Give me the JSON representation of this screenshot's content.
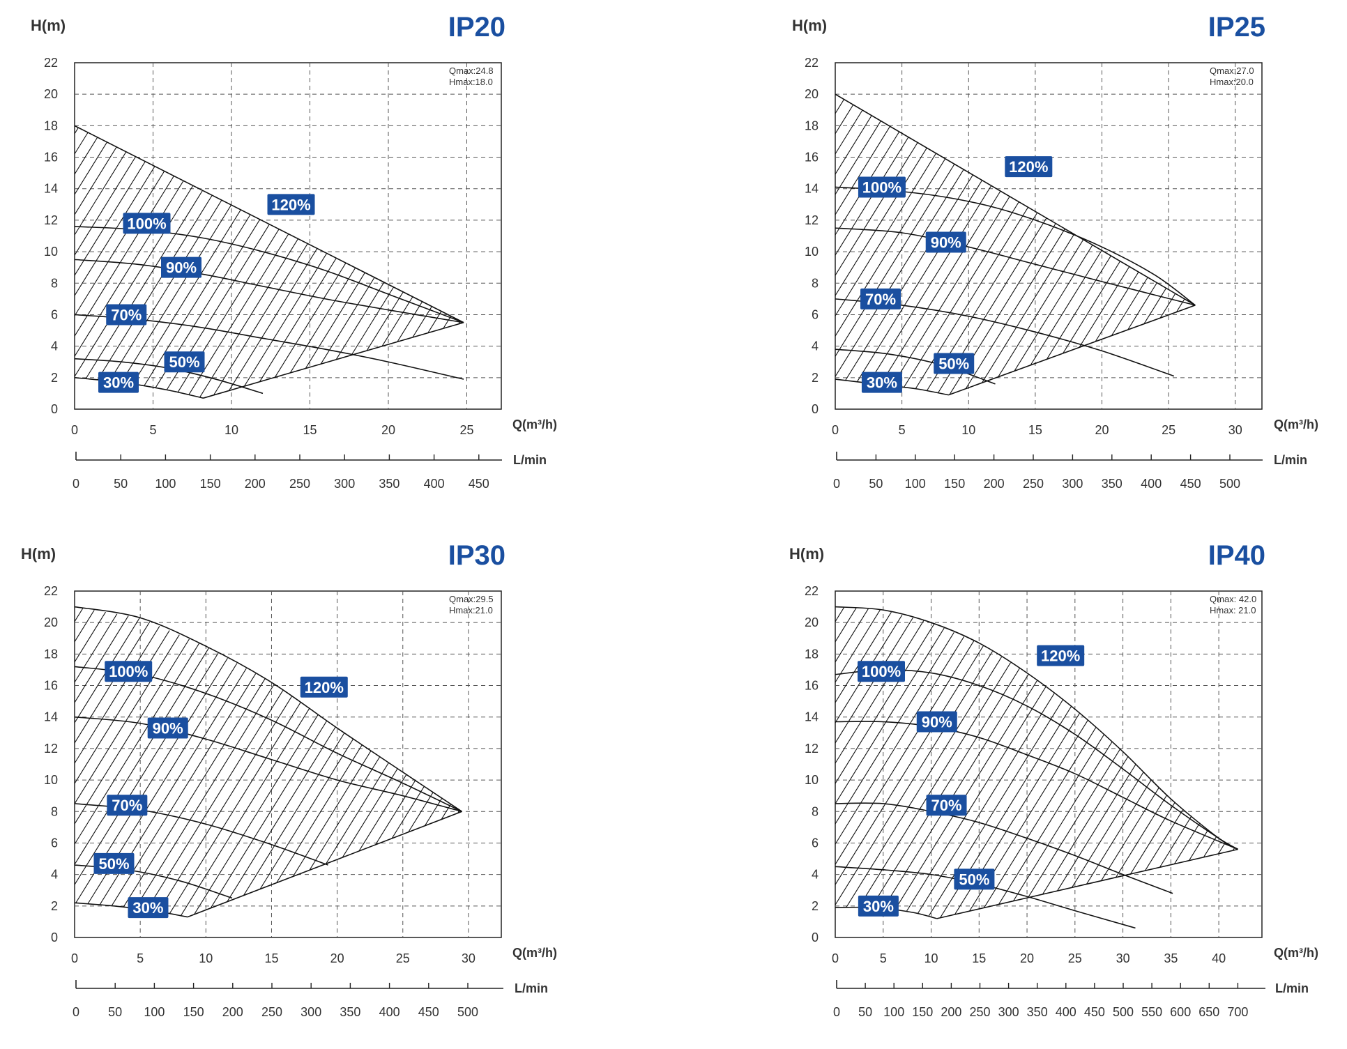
{
  "chart_data": [
    {
      "type": "line",
      "title": "IP20",
      "ylabel": "H(m)",
      "xlabel": "Q(m³/h)",
      "secondary_xlabel": "L/min",
      "ylim": [
        0,
        22
      ],
      "xlim": [
        0,
        27.2
      ],
      "xticks": [
        "0",
        "5",
        "10",
        "15",
        "20",
        "25"
      ],
      "yticks": [
        "0",
        "2",
        "4",
        "6",
        "8",
        "10",
        "12",
        "14",
        "16",
        "18",
        "20",
        "22"
      ],
      "lmin_ticks": [
        "0",
        "50",
        "100",
        "150",
        "200",
        "250",
        "300",
        "350",
        "400",
        "450"
      ],
      "annotation": [
        "Qmax:24.8",
        "Hmax:18.0"
      ],
      "series": [
        {
          "name": "120%",
          "x": [
            0,
            24.8
          ],
          "y": [
            18.0,
            5.5
          ],
          "label_at": [
            13.8,
            13.0
          ]
        },
        {
          "name": "100%",
          "x": [
            0,
            4,
            8,
            12,
            16,
            20,
            24.8
          ],
          "y": [
            11.6,
            11.4,
            10.9,
            10.0,
            8.8,
            7.3,
            5.5
          ],
          "label_at": [
            4.6,
            11.8
          ]
        },
        {
          "name": "90%",
          "x": [
            0,
            4,
            8,
            12,
            16,
            20,
            24.8
          ],
          "y": [
            9.5,
            9.2,
            8.6,
            7.8,
            7.0,
            6.3,
            5.5
          ],
          "label_at": [
            6.8,
            9.0
          ]
        },
        {
          "name": "70%",
          "x": [
            0,
            4,
            8,
            12,
            16,
            20,
            24.8
          ],
          "y": [
            6.0,
            5.7,
            5.2,
            4.5,
            3.8,
            3.0,
            1.9
          ],
          "label_at": [
            3.3,
            6.0
          ]
        },
        {
          "name": "50%",
          "x": [
            0,
            3,
            6,
            9,
            12
          ],
          "y": [
            3.2,
            3.0,
            2.6,
            1.9,
            1.0
          ],
          "label_at": [
            7.0,
            3.0
          ]
        },
        {
          "name": "30%",
          "x": [
            0,
            3,
            6,
            8.2
          ],
          "y": [
            2.0,
            1.7,
            1.2,
            0.7
          ],
          "label_at": [
            2.8,
            1.7
          ]
        },
        {
          "name": "",
          "x": [
            8.2,
            24.8
          ],
          "y": [
            0.7,
            5.5
          ]
        }
      ]
    },
    {
      "type": "line",
      "title": "IP25",
      "ylabel": "H(m)",
      "xlabel": "Q(m³/h)",
      "secondary_xlabel": "L/min",
      "ylim": [
        0,
        22
      ],
      "xlim": [
        0,
        32
      ],
      "xticks": [
        "0",
        "5",
        "10",
        "15",
        "20",
        "25",
        "30"
      ],
      "yticks": [
        "0",
        "2",
        "4",
        "6",
        "8",
        "10",
        "12",
        "14",
        "16",
        "18",
        "20",
        "22"
      ],
      "lmin_ticks": [
        "0",
        "50",
        "100",
        "150",
        "200",
        "250",
        "300",
        "350",
        "400",
        "450",
        "500"
      ],
      "annotation": [
        "Qmax:27.0",
        "Hmax:20.0"
      ],
      "series": [
        {
          "name": "120%",
          "x": [
            0,
            27.0
          ],
          "y": [
            20.0,
            6.6
          ],
          "label_at": [
            14.5,
            15.4
          ]
        },
        {
          "name": "100%",
          "x": [
            0,
            4,
            8,
            12,
            16,
            20,
            24,
            27.0
          ],
          "y": [
            14.1,
            13.9,
            13.5,
            12.8,
            11.7,
            10.3,
            8.5,
            6.6
          ],
          "label_at": [
            3.5,
            14.1
          ]
        },
        {
          "name": "90%",
          "x": [
            0,
            5,
            10,
            15,
            20,
            27.0
          ],
          "y": [
            11.5,
            11.2,
            10.3,
            9.2,
            8.1,
            6.6
          ],
          "label_at": [
            8.3,
            10.6
          ]
        },
        {
          "name": "70%",
          "x": [
            0,
            5,
            10,
            15,
            20,
            25.4
          ],
          "y": [
            7.0,
            6.6,
            5.9,
            4.9,
            3.7,
            2.1
          ],
          "label_at": [
            3.4,
            7.0
          ]
        },
        {
          "name": "50%",
          "x": [
            0,
            4,
            8,
            12
          ],
          "y": [
            3.8,
            3.5,
            2.8,
            1.6
          ],
          "label_at": [
            8.9,
            2.9
          ]
        },
        {
          "name": "30%",
          "x": [
            0,
            3,
            6,
            8.5
          ],
          "y": [
            1.9,
            1.6,
            1.3,
            0.9
          ],
          "label_at": [
            3.5,
            1.7
          ]
        },
        {
          "name": "",
          "x": [
            8.5,
            27.0
          ],
          "y": [
            0.9,
            6.6
          ]
        }
      ]
    },
    {
      "type": "line",
      "title": "IP30",
      "ylabel": "H(m)",
      "xlabel": "Q(m³/h)",
      "secondary_xlabel": "L/min",
      "ylim": [
        0,
        22
      ],
      "xlim": [
        0,
        32.5
      ],
      "xticks": [
        "0",
        "5",
        "10",
        "15",
        "20",
        "25",
        "30"
      ],
      "yticks": [
        "0",
        "2",
        "4",
        "6",
        "8",
        "10",
        "12",
        "14",
        "16",
        "18",
        "20",
        "22"
      ],
      "lmin_ticks": [
        "0",
        "50",
        "100",
        "150",
        "200",
        "250",
        "300",
        "350",
        "400",
        "450",
        "500"
      ],
      "annotation": [
        "Qmax:29.5",
        "Hmax:21.0"
      ],
      "series": [
        {
          "name": "120%",
          "x": [
            0,
            5,
            10,
            15,
            20,
            25,
            29.5
          ],
          "y": [
            21.0,
            20.3,
            18.5,
            16.2,
            13.3,
            10.5,
            8.0
          ],
          "label_at": [
            19.0,
            15.9
          ]
        },
        {
          "name": "100%",
          "x": [
            0,
            5,
            10,
            15,
            20,
            25,
            29.5
          ],
          "y": [
            17.2,
            16.7,
            15.5,
            13.8,
            11.7,
            9.8,
            8.0
          ],
          "label_at": [
            4.1,
            16.9
          ]
        },
        {
          "name": "90%",
          "x": [
            0,
            5,
            10,
            15,
            20,
            25,
            29.5
          ],
          "y": [
            14.0,
            13.6,
            12.6,
            11.3,
            10.0,
            9.0,
            8.0
          ],
          "label_at": [
            7.1,
            13.3
          ]
        },
        {
          "name": "70%",
          "x": [
            0,
            5,
            10,
            15,
            19.3
          ],
          "y": [
            8.5,
            8.1,
            7.2,
            5.9,
            4.6
          ],
          "label_at": [
            4.0,
            8.4
          ]
        },
        {
          "name": "50%",
          "x": [
            0,
            4,
            8,
            12
          ],
          "y": [
            4.6,
            4.3,
            3.6,
            2.5
          ],
          "label_at": [
            3.0,
            4.7
          ]
        },
        {
          "name": "30%",
          "x": [
            0,
            3,
            6,
            8.6
          ],
          "y": [
            2.2,
            2.0,
            1.7,
            1.3
          ],
          "label_at": [
            5.6,
            1.9
          ]
        },
        {
          "name": "",
          "x": [
            8.6,
            29.5
          ],
          "y": [
            1.3,
            8.0
          ]
        }
      ]
    },
    {
      "type": "line",
      "title": "IP40",
      "ylabel": "H(m)",
      "xlabel": "Q(m³/h)",
      "secondary_xlabel": "L/min",
      "ylim": [
        0,
        22
      ],
      "xlim": [
        0,
        44.5
      ],
      "xticks": [
        "0",
        "5",
        "10",
        "15",
        "20",
        "25",
        "30",
        "35",
        "40"
      ],
      "yticks": [
        "0",
        "2",
        "4",
        "6",
        "8",
        "10",
        "12",
        "14",
        "16",
        "18",
        "20",
        "22"
      ],
      "lmin_ticks": [
        "0",
        "50",
        "100",
        "150",
        "200",
        "250",
        "300",
        "350",
        "400",
        "450",
        "500",
        "550",
        "600",
        "650",
        "700"
      ],
      "annotation": [
        "Qmax: 42.0",
        "Hmax: 21.0"
      ],
      "series": [
        {
          "name": "120%",
          "x": [
            0,
            5,
            10,
            15,
            20,
            25,
            30,
            35,
            40,
            42.0
          ],
          "y": [
            21.0,
            20.8,
            20.0,
            18.7,
            16.8,
            14.5,
            11.8,
            8.8,
            6.3,
            5.6
          ],
          "label_at": [
            23.5,
            17.9
          ]
        },
        {
          "name": "100%",
          "x": [
            0,
            5,
            10,
            15,
            20,
            25,
            30,
            35,
            40,
            42.0
          ],
          "y": [
            16.7,
            17.0,
            16.8,
            16.0,
            14.7,
            12.9,
            10.7,
            8.4,
            6.3,
            5.6
          ],
          "label_at": [
            4.8,
            16.9
          ]
        },
        {
          "name": "90%",
          "x": [
            0,
            5,
            10,
            15,
            20,
            25,
            30,
            35,
            42.0
          ],
          "y": [
            13.7,
            13.7,
            13.4,
            12.7,
            11.6,
            10.4,
            8.9,
            7.4,
            5.6
          ],
          "label_at": [
            10.6,
            13.7
          ]
        },
        {
          "name": "70%",
          "x": [
            0,
            5,
            10,
            15,
            20,
            25,
            30,
            35.2
          ],
          "y": [
            8.5,
            8.5,
            8.0,
            7.3,
            6.3,
            5.2,
            4.0,
            2.8
          ],
          "label_at": [
            11.6,
            8.4
          ]
        },
        {
          "name": "50%",
          "x": [
            0,
            5,
            10,
            15,
            20,
            25,
            31.3
          ],
          "y": [
            4.5,
            4.3,
            4.0,
            3.4,
            2.6,
            1.7,
            0.6
          ],
          "label_at": [
            14.5,
            3.7
          ]
        },
        {
          "name": "30%",
          "x": [
            0,
            4,
            8,
            10.6
          ],
          "y": [
            1.9,
            1.9,
            1.6,
            1.2
          ],
          "label_at": [
            4.5,
            2.0
          ]
        },
        {
          "name": "",
          "x": [
            10.6,
            42.0
          ],
          "y": [
            1.2,
            5.6
          ]
        }
      ]
    }
  ]
}
